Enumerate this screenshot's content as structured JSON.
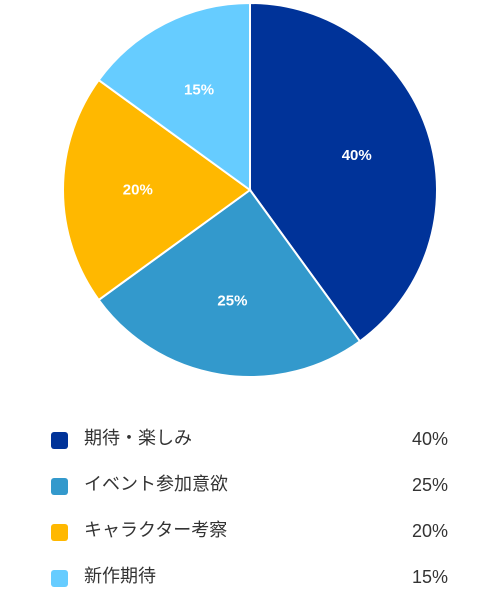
{
  "chart_data": {
    "type": "pie",
    "slices": [
      {
        "label": "期待・楽しみ",
        "value": 40,
        "value_label": "40%",
        "color": "#003399"
      },
      {
        "label": "イベント参加意欲",
        "value": 25,
        "value_label": "25%",
        "color": "#3399CC"
      },
      {
        "label": "キャラクター考察",
        "value": 20,
        "value_label": "20%",
        "color": "#FFB800"
      },
      {
        "label": "新作期待",
        "value": 15,
        "value_label": "15%",
        "color": "#66CCFF"
      }
    ],
    "legend_position": "bottom",
    "start_angle": "top, clockwise"
  }
}
